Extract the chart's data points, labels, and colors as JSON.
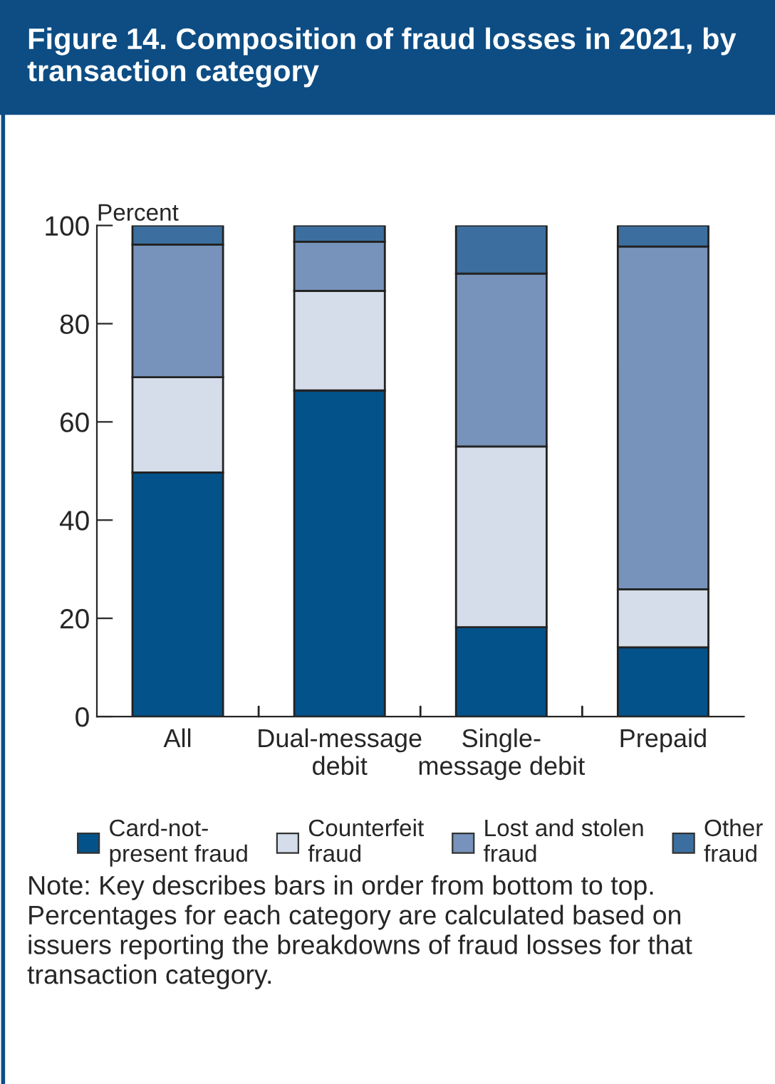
{
  "chart_data": {
    "type": "bar",
    "title": "Figure 14. Composition of fraud losses in 2021, by transaction category",
    "ylabel": "Percent",
    "categories": [
      "All",
      "Dual-message\ndebit",
      "Single-\nmessage debit",
      "Prepaid"
    ],
    "stacked": true,
    "series": [
      {
        "name": "Card-not-\npresent fraud",
        "color": "#03528a",
        "values": [
          49.7,
          66.4,
          18.2,
          14.1
        ]
      },
      {
        "name": "Counterfeit\nfraud",
        "color": "#d4dde9",
        "values": [
          19.4,
          20.3,
          36.8,
          11.8
        ]
      },
      {
        "name": "Lost and stolen\nfraud",
        "color": "#7793bb",
        "values": [
          27.0,
          10.0,
          35.2,
          69.8
        ]
      },
      {
        "name": "Other\nfraud",
        "color": "#3c6f9f",
        "values": [
          3.9,
          3.3,
          9.8,
          4.3
        ]
      }
    ],
    "ylim": [
      0,
      100
    ],
    "yticks": [
      0,
      20,
      40,
      60,
      80,
      100
    ],
    "grid": false,
    "legend": "bottom",
    "annotations": [
      "Note: Key describes bars in order from bottom to top. Percentages for each category are calculated based on issuers reporting the breakdowns of fraud losses for that transaction category."
    ]
  }
}
